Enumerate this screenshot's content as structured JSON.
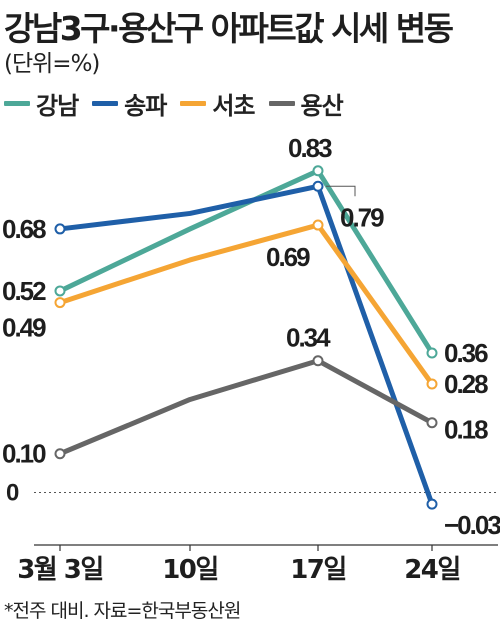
{
  "title": "강남3구·용산구 아파트값 시세 변동",
  "unit_label": "(단위=%)",
  "footnote": "*전주 대비. 자료=한국부동산원",
  "legend": [
    {
      "name": "강남",
      "color": "#4da898"
    },
    {
      "name": "송파",
      "color": "#1f5fa8"
    },
    {
      "name": "서초",
      "color": "#f5a534"
    },
    {
      "name": "용산",
      "color": "#666666"
    }
  ],
  "chart_data": {
    "type": "line",
    "title": "강남3구·용산구 아파트값 시세 변동",
    "unit": "(단위=%)",
    "categories": [
      "3월 3일",
      "10일",
      "17일",
      "24일"
    ],
    "ylim": [
      -0.05,
      0.9
    ],
    "zero_line": true,
    "series": [
      {
        "name": "강남",
        "color": "#4da898",
        "values": [
          0.52,
          0.68,
          0.83,
          0.36
        ],
        "labels": [
          "0.52",
          null,
          "0.83",
          "0.36"
        ]
      },
      {
        "name": "송파",
        "color": "#1f5fa8",
        "values": [
          0.68,
          0.72,
          0.79,
          -0.03
        ],
        "labels": [
          "0.68",
          null,
          "0.79",
          "−0.03"
        ]
      },
      {
        "name": "서초",
        "color": "#f5a534",
        "values": [
          0.49,
          0.6,
          0.69,
          0.28
        ],
        "labels": [
          "0.49",
          null,
          "0.69",
          "0.28"
        ]
      },
      {
        "name": "용산",
        "color": "#666666",
        "values": [
          0.1,
          0.24,
          0.34,
          0.18
        ],
        "labels": [
          "0.10",
          null,
          "0.34",
          "0.18"
        ]
      }
    ],
    "zero_label": "0"
  }
}
